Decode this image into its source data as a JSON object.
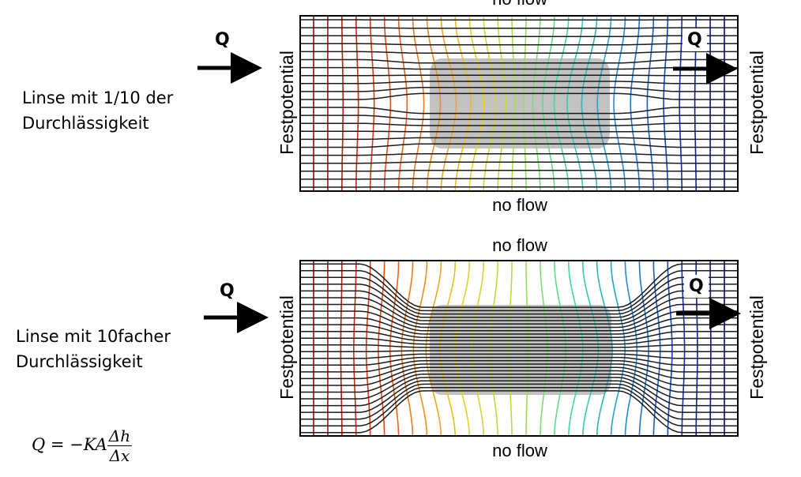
{
  "panels": [
    {
      "id": "top",
      "caption_line1": "Linse mit 1/10 der",
      "caption_line2": "Durchlässigkeit",
      "top_boundary": "no flow",
      "bottom_boundary": "no flow",
      "left_boundary": "Festpotential",
      "right_boundary": "Festpotential",
      "inflow_label": "Q",
      "outflow_label": "Q",
      "lens_permeability_factor": 0.1
    },
    {
      "id": "bottom",
      "caption_line1": "Linse mit 10facher",
      "caption_line2": "Durchlässigkeit",
      "top_boundary": "no flow",
      "bottom_boundary": "no flow",
      "left_boundary": "Festpotential",
      "right_boundary": "Festpotential",
      "inflow_label": "Q",
      "outflow_label": "Q",
      "lens_permeability_factor": 10
    }
  ],
  "formula": {
    "lhs": "Q = −KA",
    "numerator": "Δh",
    "denominator": "Δx"
  },
  "colors": {
    "lens": "#c2c2c2",
    "streamline": "#1a1a1a",
    "equipotential_scale": [
      "#8b0000",
      "#d42a10",
      "#ee7a1e",
      "#e8d21e",
      "#a8e04a",
      "#3cd8a8",
      "#1e8ed8",
      "#1432b4",
      "#00006e"
    ]
  }
}
